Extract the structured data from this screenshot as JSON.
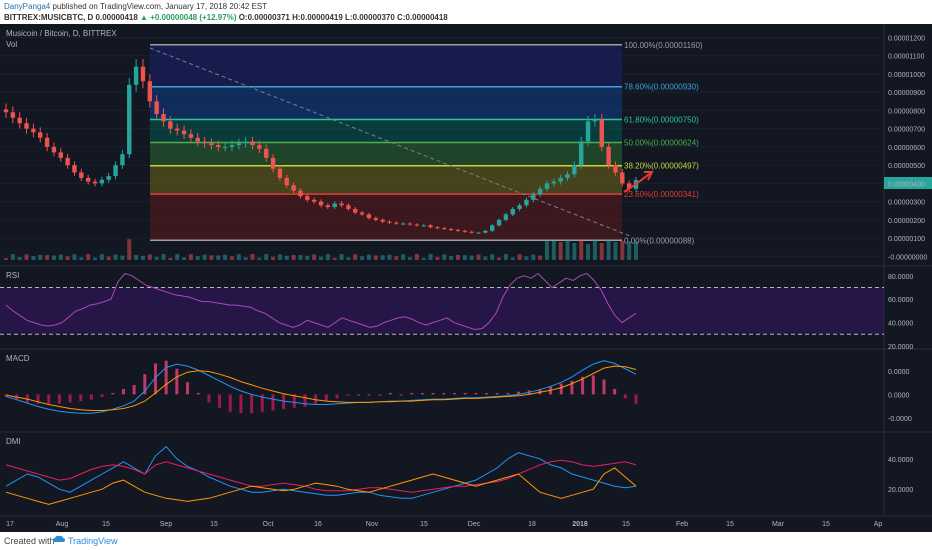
{
  "header": {
    "user": "DanyPanga4",
    "published": " published on TradingView.com, January 17, 2018 20:42 EST",
    "ticker_line": "BITTREX:MUSICBTC, D  0.00000418 ",
    "change": "▲ +0.00000048 (+12.97%)",
    "ohlc": " O:0.00000371 H:0.00000419 L:0.00000370 C:0.00000418"
  },
  "chart": {
    "pair_label": "Musicoin / Bitcoin, D, BITTREX",
    "vol_label": "Vol",
    "rsi_label": "RSI",
    "macd_label": "MACD",
    "dmi_label": "DMI"
  },
  "footer": {
    "created": "Created with",
    "brand": "TradingView"
  },
  "chart_data": [
    {
      "type": "candlestick",
      "title": "Musicoin / Bitcoin, D, BITTREX",
      "ylim": [
        -2e-07,
        1.23e-05
      ],
      "y_ticks": [
        "0.00001200",
        "0.00001100",
        "0.00001000",
        "0.00000900",
        "0.00000800",
        "0.00000700",
        "0.00000600",
        "0.00000500",
        "0.00000400",
        "0.00000300",
        "0.00000200",
        "0.00000100",
        "-0.00000000"
      ],
      "x_ticks": [
        "17",
        "Aug",
        "15",
        "Sep",
        "15",
        "Oct",
        "16",
        "Nov",
        "15",
        "Dec",
        "18",
        "2018",
        "15",
        "Feb",
        "15",
        "Mar",
        "15",
        "Ap"
      ],
      "last_price": 4.18e-06,
      "fibonacci": [
        {
          "label": "100.00%(0.00001160)",
          "value": 1.16e-05,
          "color": "#9e9e9e"
        },
        {
          "label": "78.60%(0.00000930)",
          "value": 9.3e-06,
          "color": "#3aa3d8"
        },
        {
          "label": "61.80%(0.00000750)",
          "value": 7.5e-06,
          "color": "#26c6a0"
        },
        {
          "label": "50.00%(0.00000624)",
          "value": 6.24e-06,
          "color": "#4caf50"
        },
        {
          "label": "38.20%(0.00000497)",
          "value": 4.97e-06,
          "color": "#c6d43a"
        },
        {
          "label": "23.60%(0.00000341)",
          "value": 3.41e-06,
          "color": "#e53935"
        },
        {
          "label": "0.00%(0.00000088)",
          "value": 8.8e-07,
          "color": "#9e9e9e"
        }
      ],
      "close_series": [
        7.9,
        7.6,
        7.3,
        7.0,
        6.8,
        6.5,
        6.0,
        5.7,
        5.4,
        5.0,
        4.6,
        4.3,
        4.1,
        4.0,
        4.2,
        4.4,
        5.0,
        5.6,
        9.4,
        10.4,
        9.6,
        8.5,
        7.8,
        7.4,
        7.0,
        6.9,
        6.7,
        6.5,
        6.3,
        6.2,
        6.1,
        6.0,
        6.0,
        6.1,
        6.2,
        6.3,
        6.1,
        5.9,
        5.4,
        4.8,
        4.3,
        3.9,
        3.6,
        3.3,
        3.1,
        3.0,
        2.8,
        2.7,
        2.9,
        2.8,
        2.6,
        2.4,
        2.3,
        2.1,
        2.0,
        1.9,
        1.85,
        1.8,
        1.8,
        1.75,
        1.7,
        1.7,
        1.6,
        1.55,
        1.5,
        1.45,
        1.4,
        1.35,
        1.3,
        1.3,
        1.4,
        1.7,
        2.0,
        2.3,
        2.6,
        2.8,
        3.1,
        3.4,
        3.7,
        4.0,
        4.1,
        4.3,
        4.5,
        5.0,
        6.3,
        7.4,
        7.5,
        6.0,
        5.0,
        4.6,
        4.0,
        3.7,
        4.18
      ]
    },
    {
      "type": "line",
      "title": "RSI",
      "ylim": [
        20,
        85
      ],
      "y_ticks": [
        "80.0000",
        "60.0000",
        "40.0000",
        "20.0000"
      ],
      "series": [
        {
          "values": [
            55,
            50,
            46,
            42,
            40,
            38,
            37,
            38,
            40,
            45,
            50,
            52,
            55,
            56,
            58,
            60,
            75,
            82,
            80,
            76,
            72,
            70,
            68,
            66,
            64,
            63,
            62,
            60,
            58,
            58,
            57,
            56,
            55,
            55,
            54,
            53,
            50,
            48,
            44,
            40,
            38,
            36,
            38,
            42,
            40,
            38,
            36,
            40,
            44,
            42,
            40,
            38,
            36,
            37,
            40,
            42,
            44,
            45,
            43,
            40,
            38,
            40,
            42,
            44,
            40,
            38,
            36,
            34,
            35,
            40,
            48,
            62,
            72,
            78,
            80,
            78,
            82,
            76,
            70,
            74,
            78,
            76,
            80,
            82,
            76,
            68,
            56,
            46,
            40,
            44,
            48
          ]
        }
      ]
    },
    {
      "type": "line",
      "title": "MACD",
      "ylim": [
        -5e-07,
        6e-07
      ],
      "y_ticks": [
        "0.0000",
        "0.0000",
        "-0.0000"
      ],
      "series": [
        {
          "values": [
            -0.03,
            -0.08,
            -0.13,
            -0.18,
            -0.22,
            -0.25,
            -0.27,
            -0.28,
            -0.28,
            -0.26,
            -0.22,
            -0.17,
            -0.1,
            0.05,
            0.25,
            0.4,
            0.45,
            0.42,
            0.36,
            0.28,
            0.2,
            0.12,
            0.05,
            0.0,
            -0.04,
            -0.07,
            -0.1,
            -0.12,
            -0.14,
            -0.15,
            -0.15,
            -0.14,
            -0.13,
            -0.12,
            -0.12,
            -0.11,
            -0.1,
            -0.1,
            -0.09,
            -0.08,
            -0.07,
            -0.07,
            -0.06,
            -0.05,
            -0.05,
            -0.04,
            -0.03,
            -0.02,
            0.0,
            0.03,
            0.07,
            0.12,
            0.18,
            0.26,
            0.36,
            0.45,
            0.5,
            0.46,
            0.38,
            0.3
          ]
        },
        {
          "values": [
            -0.01,
            -0.04,
            -0.07,
            -0.11,
            -0.15,
            -0.18,
            -0.21,
            -0.23,
            -0.24,
            -0.24,
            -0.23,
            -0.21,
            -0.17,
            -0.1,
            0.02,
            0.15,
            0.26,
            0.33,
            0.35,
            0.34,
            0.3,
            0.25,
            0.19,
            0.14,
            0.09,
            0.05,
            0.01,
            -0.02,
            -0.05,
            -0.08,
            -0.1,
            -0.11,
            -0.12,
            -0.12,
            -0.12,
            -0.11,
            -0.11,
            -0.1,
            -0.1,
            -0.09,
            -0.08,
            -0.08,
            -0.07,
            -0.06,
            -0.06,
            -0.05,
            -0.04,
            -0.03,
            -0.02,
            0.0,
            0.03,
            0.06,
            0.1,
            0.16,
            0.23,
            0.31,
            0.39,
            0.42,
            0.41,
            0.37
          ]
        }
      ]
    },
    {
      "type": "line",
      "title": "DMI",
      "ylim": [
        5,
        55
      ],
      "y_ticks": [
        "40.0000",
        "20.0000"
      ],
      "series": [
        {
          "values": [
            22,
            26,
            30,
            28,
            24,
            20,
            18,
            22,
            26,
            30,
            34,
            38,
            34,
            30,
            42,
            48,
            40,
            35,
            32,
            28,
            25,
            22,
            20,
            18,
            18,
            19,
            20,
            19,
            18,
            17,
            16,
            16,
            17,
            18,
            18,
            16,
            15,
            14,
            14,
            16,
            18,
            20,
            22,
            24,
            26,
            30,
            34,
            40,
            44,
            42,
            40,
            36,
            34,
            30,
            28,
            26,
            24,
            22,
            21,
            22
          ]
        },
        {
          "values": [
            36,
            34,
            32,
            30,
            28,
            26,
            27,
            30,
            33,
            35,
            36,
            35,
            33,
            30,
            36,
            38,
            36,
            34,
            32,
            30,
            28,
            26,
            24,
            22,
            22,
            23,
            24,
            23,
            22,
            20,
            19,
            19,
            19,
            20,
            21,
            21,
            20,
            19,
            18,
            19,
            20,
            21,
            22,
            22,
            23,
            24,
            25,
            27,
            30,
            33,
            36,
            38,
            39,
            38,
            36,
            35,
            36,
            37,
            38,
            36
          ]
        },
        {
          "values": [
            18,
            16,
            14,
            12,
            10,
            12,
            14,
            16,
            18,
            20,
            24,
            26,
            22,
            18,
            16,
            14,
            13,
            12,
            13,
            14,
            16,
            18,
            20,
            22,
            21,
            20,
            19,
            20,
            22,
            24,
            23,
            22,
            20,
            19,
            18,
            20,
            22,
            24,
            26,
            28,
            30,
            28,
            26,
            24,
            22,
            24,
            26,
            28,
            30,
            24,
            18,
            16,
            14,
            16,
            18,
            20,
            30,
            34,
            28,
            22
          ]
        }
      ]
    }
  ]
}
